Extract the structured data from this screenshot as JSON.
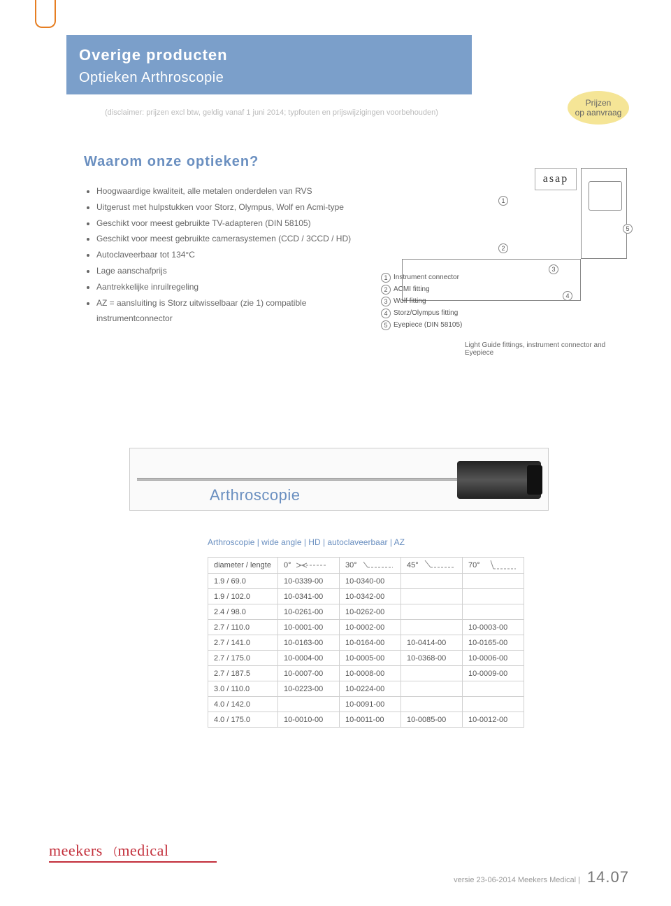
{
  "header": {
    "title": "Overige producten",
    "subtitle": "Optieken Arthroscopie",
    "bg_color": "#7b9fca",
    "text_color": "#ffffff"
  },
  "disclaimer": "(disclaimer: prijzen excl btw, geldig vanaf 1 juni 2014; typfouten en prijswijzigingen voorbehouden)",
  "price_badge": {
    "line1": "Prijzen",
    "line2": "op aanvraag",
    "bg": "#f5e596"
  },
  "section": {
    "title": "Waarom onze optieken?",
    "color": "#6a8fc0"
  },
  "bullets": [
    "Hoogwaardige kwaliteit, alle metalen onderdelen van RVS",
    "Uitgerust met hulpstukken voor Storz, Olympus, Wolf en Acmi-type",
    "Geschikt voor meest gebruikte TV-adapteren (DIN 58105)",
    "Geschikt voor meest gebruikte camerasystemen (CCD / 3CCD / HD)",
    "Autoclaveerbaar tot 134°C",
    "Lage aanschafprijs",
    "Aantrekkelijke inruilregeling",
    "AZ = aansluiting is Storz uitwisselbaar (zie 1) compatible instrumentconnector"
  ],
  "diagram": {
    "asap": "asap",
    "legend": [
      {
        "n": "1",
        "label": "Instrument connector"
      },
      {
        "n": "2",
        "label": "ACMI fitting"
      },
      {
        "n": "3",
        "label": "Wolf fitting"
      },
      {
        "n": "4",
        "label": "Storz/Olympus fitting"
      },
      {
        "n": "5",
        "label": "Eyepiece (DIN 58105)"
      }
    ],
    "callout_nums": [
      "1",
      "2",
      "3",
      "4",
      "5"
    ],
    "caption": "Light Guide fittings, instrument connector and Eyepiece"
  },
  "arthroscopy": {
    "heading": "Arthroscopie",
    "table_title": "Arthroscopie | wide angle | HD | autoclaveerbaar | AZ",
    "dim_header": "diameter / lengte",
    "angles": [
      "0°",
      "30°",
      "45°",
      "70°"
    ],
    "rows": [
      {
        "dim": "1.9 / 69.0",
        "c": [
          "10-0339-00",
          "10-0340-00",
          "",
          ""
        ]
      },
      {
        "dim": "1.9 / 102.0",
        "c": [
          "10-0341-00",
          "10-0342-00",
          "",
          ""
        ]
      },
      {
        "dim": "2.4 / 98.0",
        "c": [
          "10-0261-00",
          "10-0262-00",
          "",
          ""
        ]
      },
      {
        "dim": "2.7 / 110.0",
        "c": [
          "10-0001-00",
          "10-0002-00",
          "",
          "10-0003-00"
        ]
      },
      {
        "dim": "2.7 / 141.0",
        "c": [
          "10-0163-00",
          "10-0164-00",
          "10-0414-00",
          "10-0165-00"
        ]
      },
      {
        "dim": "2.7 / 175.0",
        "c": [
          "10-0004-00",
          "10-0005-00",
          "10-0368-00",
          "10-0006-00"
        ]
      },
      {
        "dim": "2.7 / 187.5",
        "c": [
          "10-0007-00",
          "10-0008-00",
          "",
          "10-0009-00"
        ]
      },
      {
        "dim": "3.0 / 110.0",
        "c": [
          "10-0223-00",
          "10-0224-00",
          "",
          ""
        ]
      },
      {
        "dim": "4.0 / 142.0",
        "c": [
          "",
          "10-0091-00",
          "",
          ""
        ]
      },
      {
        "dim": "4.0 / 175.0",
        "c": [
          "10-0010-00",
          "10-0011-00",
          "10-0085-00",
          "10-0012-00"
        ]
      }
    ],
    "border_color": "#d0d0d0"
  },
  "logo": {
    "brand": "meekers",
    "brand2": "medical",
    "color": "#c32f3b"
  },
  "footer": {
    "text": "versie 23-06-2014 Meekers Medical |",
    "page": "14.07"
  }
}
